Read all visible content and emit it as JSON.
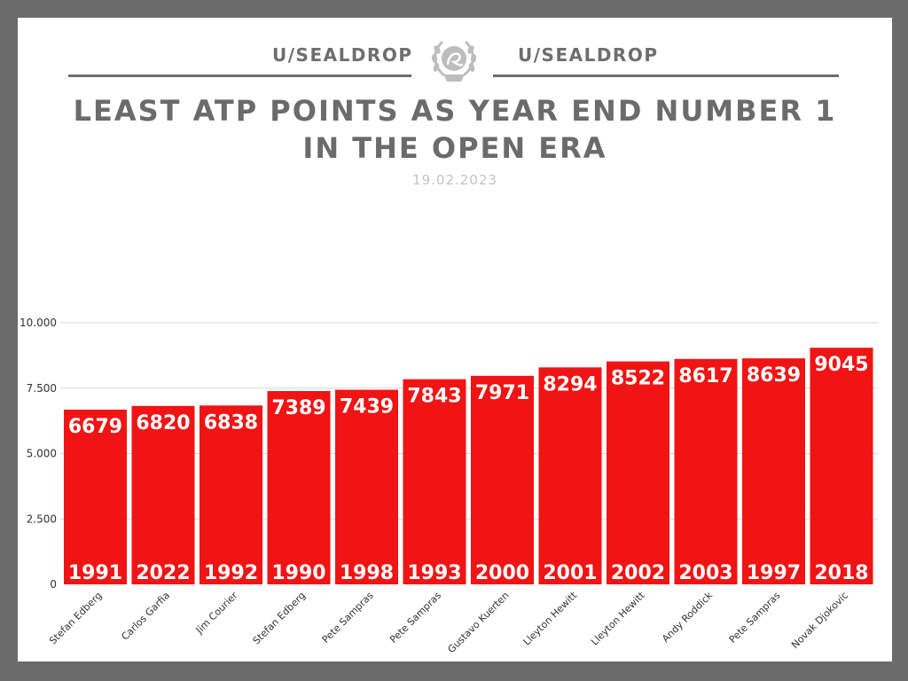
{
  "header": {
    "brand_left": "U/SEALDROP",
    "brand_right": "U/SEALDROP",
    "logo": "seal-laurel-icon",
    "title_line1": "LEAST ATP POINTS AS YEAR END NUMBER 1",
    "title_line2": "IN THE OPEN ERA",
    "date": "19.02.2023"
  },
  "colors": {
    "bar": "#f01414",
    "frame": "#6b6b6b",
    "text": "#6b6b6b",
    "grid": "#d9d9d9"
  },
  "chart_data": {
    "type": "bar",
    "title": "LEAST ATP POINTS AS YEAR END NUMBER 1 IN THE OPEN ERA",
    "xlabel": "",
    "ylabel": "",
    "ylim": [
      0,
      10000
    ],
    "yticks": [
      0,
      2500,
      5000,
      7500,
      10000
    ],
    "ytick_labels": [
      "0",
      "2.500",
      "5.000",
      "7.500",
      "10.000"
    ],
    "grid": true,
    "categories": [
      "Stefan Edberg",
      "Carlos Garfia",
      "Jim Courier",
      "Stefan Edberg",
      "Pete Sampras",
      "Pete Sampras",
      "Gustavo Kuerten",
      "Lleyton Hewitt",
      "Lleyton Hewitt",
      "Andy Roddick",
      "Pete Sampras",
      "Novak Djokovic"
    ],
    "values": [
      6679,
      6820,
      6838,
      7389,
      7439,
      7843,
      7971,
      8294,
      8522,
      8617,
      8639,
      9045
    ],
    "years": [
      "1991",
      "2022",
      "1992",
      "1990",
      "1998",
      "1993",
      "2000",
      "2001",
      "2002",
      "2003",
      "1997",
      "2018"
    ]
  }
}
